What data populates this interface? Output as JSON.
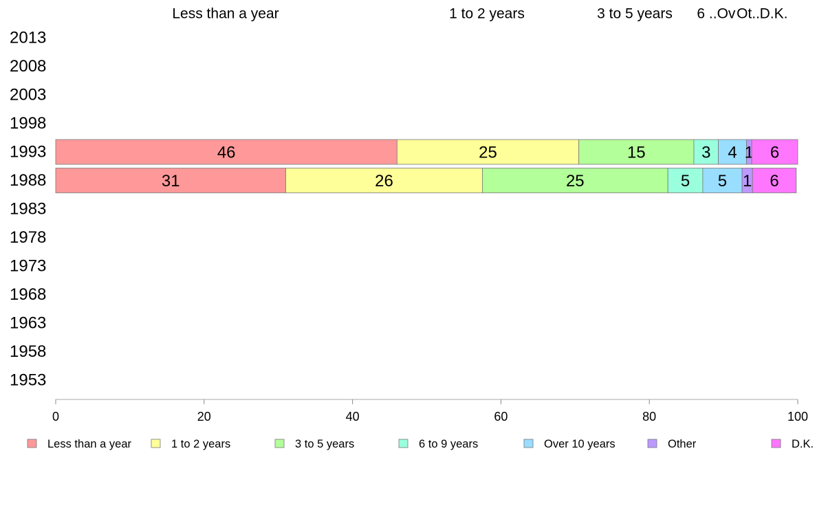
{
  "chart_data": {
    "type": "bar",
    "orientation": "horizontal",
    "stacked": true,
    "title": "",
    "xlabel": "",
    "ylabel": "",
    "xlim": [
      0,
      100
    ],
    "x_ticks": [
      "0",
      "20",
      "40",
      "60",
      "80",
      "100"
    ],
    "grid": false,
    "legend_position": "bottom",
    "top_labels": [
      "Less than a year",
      "1 to 2 years",
      "3 to 5 years",
      "6 ..",
      "Ov",
      "Ot..",
      "D.K."
    ],
    "categories": [
      "2013",
      "2008",
      "2003",
      "1998",
      "1993",
      "1988",
      "1983",
      "1978",
      "1973",
      "1968",
      "1963",
      "1958",
      "1953"
    ],
    "series": [
      {
        "name": "Less than a year",
        "color": "#ff9999",
        "values": [
          null,
          null,
          null,
          null,
          46,
          31,
          null,
          null,
          null,
          null,
          null,
          null,
          null
        ],
        "labels": [
          "",
          "",
          "",
          "",
          "46",
          "31",
          "",
          "",
          "",
          "",
          "",
          "",
          ""
        ]
      },
      {
        "name": "1 to 2 years",
        "color": "#ffff99",
        "values": [
          null,
          null,
          null,
          null,
          24.5,
          26.5,
          null,
          null,
          null,
          null,
          null,
          null,
          null
        ],
        "labels": [
          "",
          "",
          "",
          "",
          "25",
          "26",
          "",
          "",
          "",
          "",
          "",
          "",
          ""
        ]
      },
      {
        "name": "3 to 5 years",
        "color": "#b3ff99",
        "values": [
          null,
          null,
          null,
          null,
          15.5,
          25,
          null,
          null,
          null,
          null,
          null,
          null,
          null
        ],
        "labels": [
          "",
          "",
          "",
          "",
          "15",
          "25",
          "",
          "",
          "",
          "",
          "",
          "",
          ""
        ]
      },
      {
        "name": "6 to 9 years",
        "color": "#99ffdd",
        "values": [
          null,
          null,
          null,
          null,
          3.3,
          4.7,
          null,
          null,
          null,
          null,
          null,
          null,
          null
        ],
        "labels": [
          "",
          "",
          "",
          "",
          "3",
          "5",
          "",
          "",
          "",
          "",
          "",
          "",
          ""
        ]
      },
      {
        "name": "Over 10 years",
        "color": "#99ddff",
        "values": [
          null,
          null,
          null,
          null,
          3.8,
          5.3,
          null,
          null,
          null,
          null,
          null,
          null,
          null
        ],
        "labels": [
          "",
          "",
          "",
          "",
          "4",
          "5",
          "",
          "",
          "",
          "",
          "",
          "",
          ""
        ]
      },
      {
        "name": "Other",
        "color": "#bb99ff",
        "values": [
          null,
          null,
          null,
          null,
          0.7,
          1.4,
          null,
          null,
          null,
          null,
          null,
          null,
          null
        ],
        "labels": [
          "",
          "",
          "",
          "",
          "1",
          "1",
          "",
          "",
          "",
          "",
          "",
          "",
          ""
        ]
      },
      {
        "name": "D.K.",
        "color": "#ff77ff",
        "values": [
          null,
          null,
          null,
          null,
          6.2,
          5.9,
          null,
          null,
          null,
          null,
          null,
          null,
          null
        ],
        "labels": [
          "",
          "",
          "",
          "",
          "6",
          "6",
          "",
          "",
          "",
          "",
          "",
          "",
          ""
        ]
      }
    ]
  }
}
